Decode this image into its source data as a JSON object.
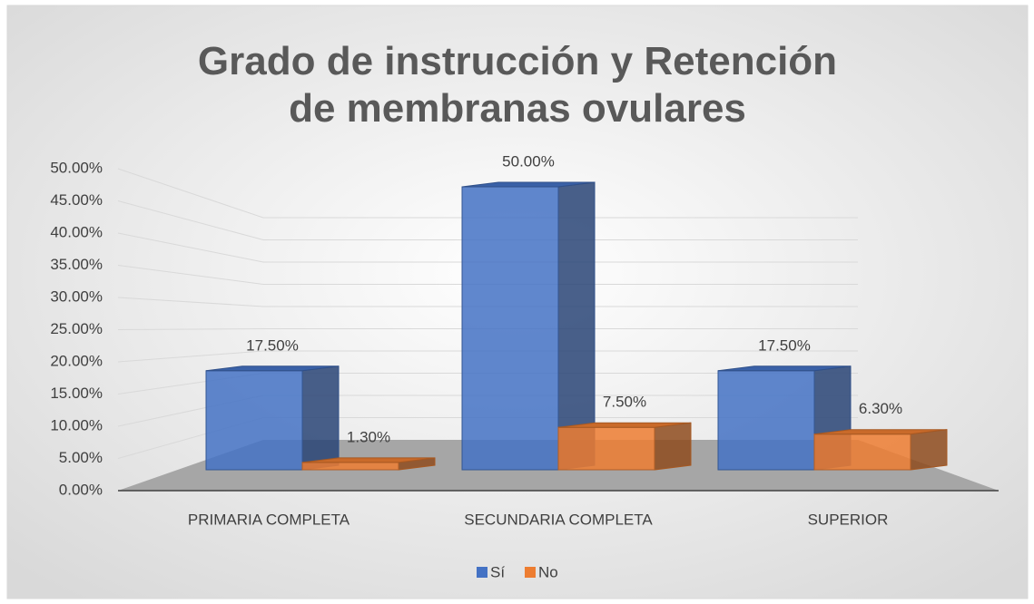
{
  "chart_data": {
    "type": "bar3d",
    "title": "Grado de instrucción y Retención de membranas ovulares",
    "categories": [
      "PRIMARIA COMPLETA",
      "SECUNDARIA COMPLETA",
      "SUPERIOR"
    ],
    "series": [
      {
        "name": "Sí",
        "color": "#4472c4",
        "values": [
          17.5,
          50,
          17.5
        ],
        "value_labels": [
          "17.50%",
          "50.00%",
          "17.50%"
        ]
      },
      {
        "name": "No",
        "color": "#ed7d31",
        "values": [
          1.3,
          7.5,
          6.3
        ],
        "value_labels": [
          "1.30%",
          "7.50%",
          "6.30%"
        ]
      }
    ],
    "ylim": [
      0,
      50
    ],
    "yticks": [
      {
        "value": 0,
        "label": "0.00%"
      },
      {
        "value": 5,
        "label": "5.00%"
      },
      {
        "value": 10,
        "label": "10.00%"
      },
      {
        "value": 15,
        "label": "15.00%"
      },
      {
        "value": 20,
        "label": "20.00%"
      },
      {
        "value": 25,
        "label": "25.00%"
      },
      {
        "value": 30,
        "label": "30.00%"
      },
      {
        "value": 35,
        "label": "35.00%"
      },
      {
        "value": 40,
        "label": "40.00%"
      },
      {
        "value": 45,
        "label": "45.00%"
      },
      {
        "value": 50,
        "label": "50.00%"
      }
    ],
    "grid": true,
    "legend": "bottom"
  }
}
